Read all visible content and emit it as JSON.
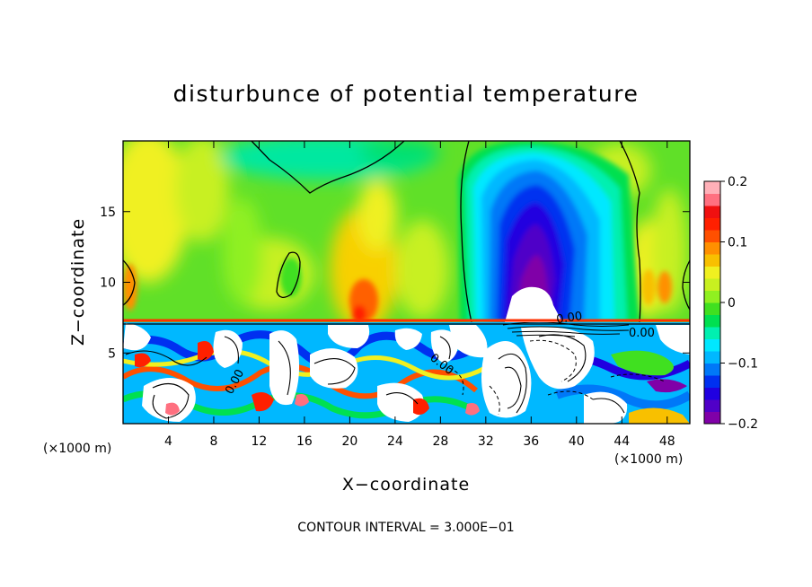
{
  "chart_data": {
    "type": "heatmap",
    "title": "disturbunce of potential temperature",
    "xlabel": "X−coordinate",
    "ylabel": "Z−coordinate",
    "x_unit": "(×1000 m)",
    "z_unit": "(×1000 m)",
    "xlim": [
      0,
      50
    ],
    "zlim": [
      0,
      20
    ],
    "x_ticks": [
      4,
      8,
      12,
      16,
      20,
      24,
      28,
      32,
      36,
      40,
      44,
      48
    ],
    "z_ticks": [
      5,
      10,
      15
    ],
    "x_tick_labels": [
      "4",
      "8",
      "12",
      "16",
      "20",
      "24",
      "28",
      "32",
      "36",
      "40",
      "44",
      "48"
    ],
    "z_tick_labels": [
      "5",
      "10",
      "15"
    ],
    "colorbar": {
      "range": [
        -0.2,
        0.2
      ],
      "ticks": [
        0.2,
        0.1,
        0,
        -0.1,
        -0.2
      ],
      "tick_labels": [
        "0.2",
        "0.1",
        "0",
        "−0.1",
        "−0.2"
      ],
      "colors": [
        "#8000a8",
        "#5000c8",
        "#2000e0",
        "#0030f0",
        "#0078f8",
        "#00b8ff",
        "#00e8ff",
        "#00f0b0",
        "#00e050",
        "#40e020",
        "#90f020",
        "#c8f020",
        "#f0f020",
        "#f8c000",
        "#ff9000",
        "#ff5000",
        "#ff2000",
        "#f01010",
        "#ff7080",
        "#ffb0b8"
      ]
    },
    "contour_labels": [
      "0.00",
      "0.00",
      "0.00",
      "0.00"
    ],
    "contour_interval_text": "CONTOUR INTERVAL =  3.000E−01"
  }
}
